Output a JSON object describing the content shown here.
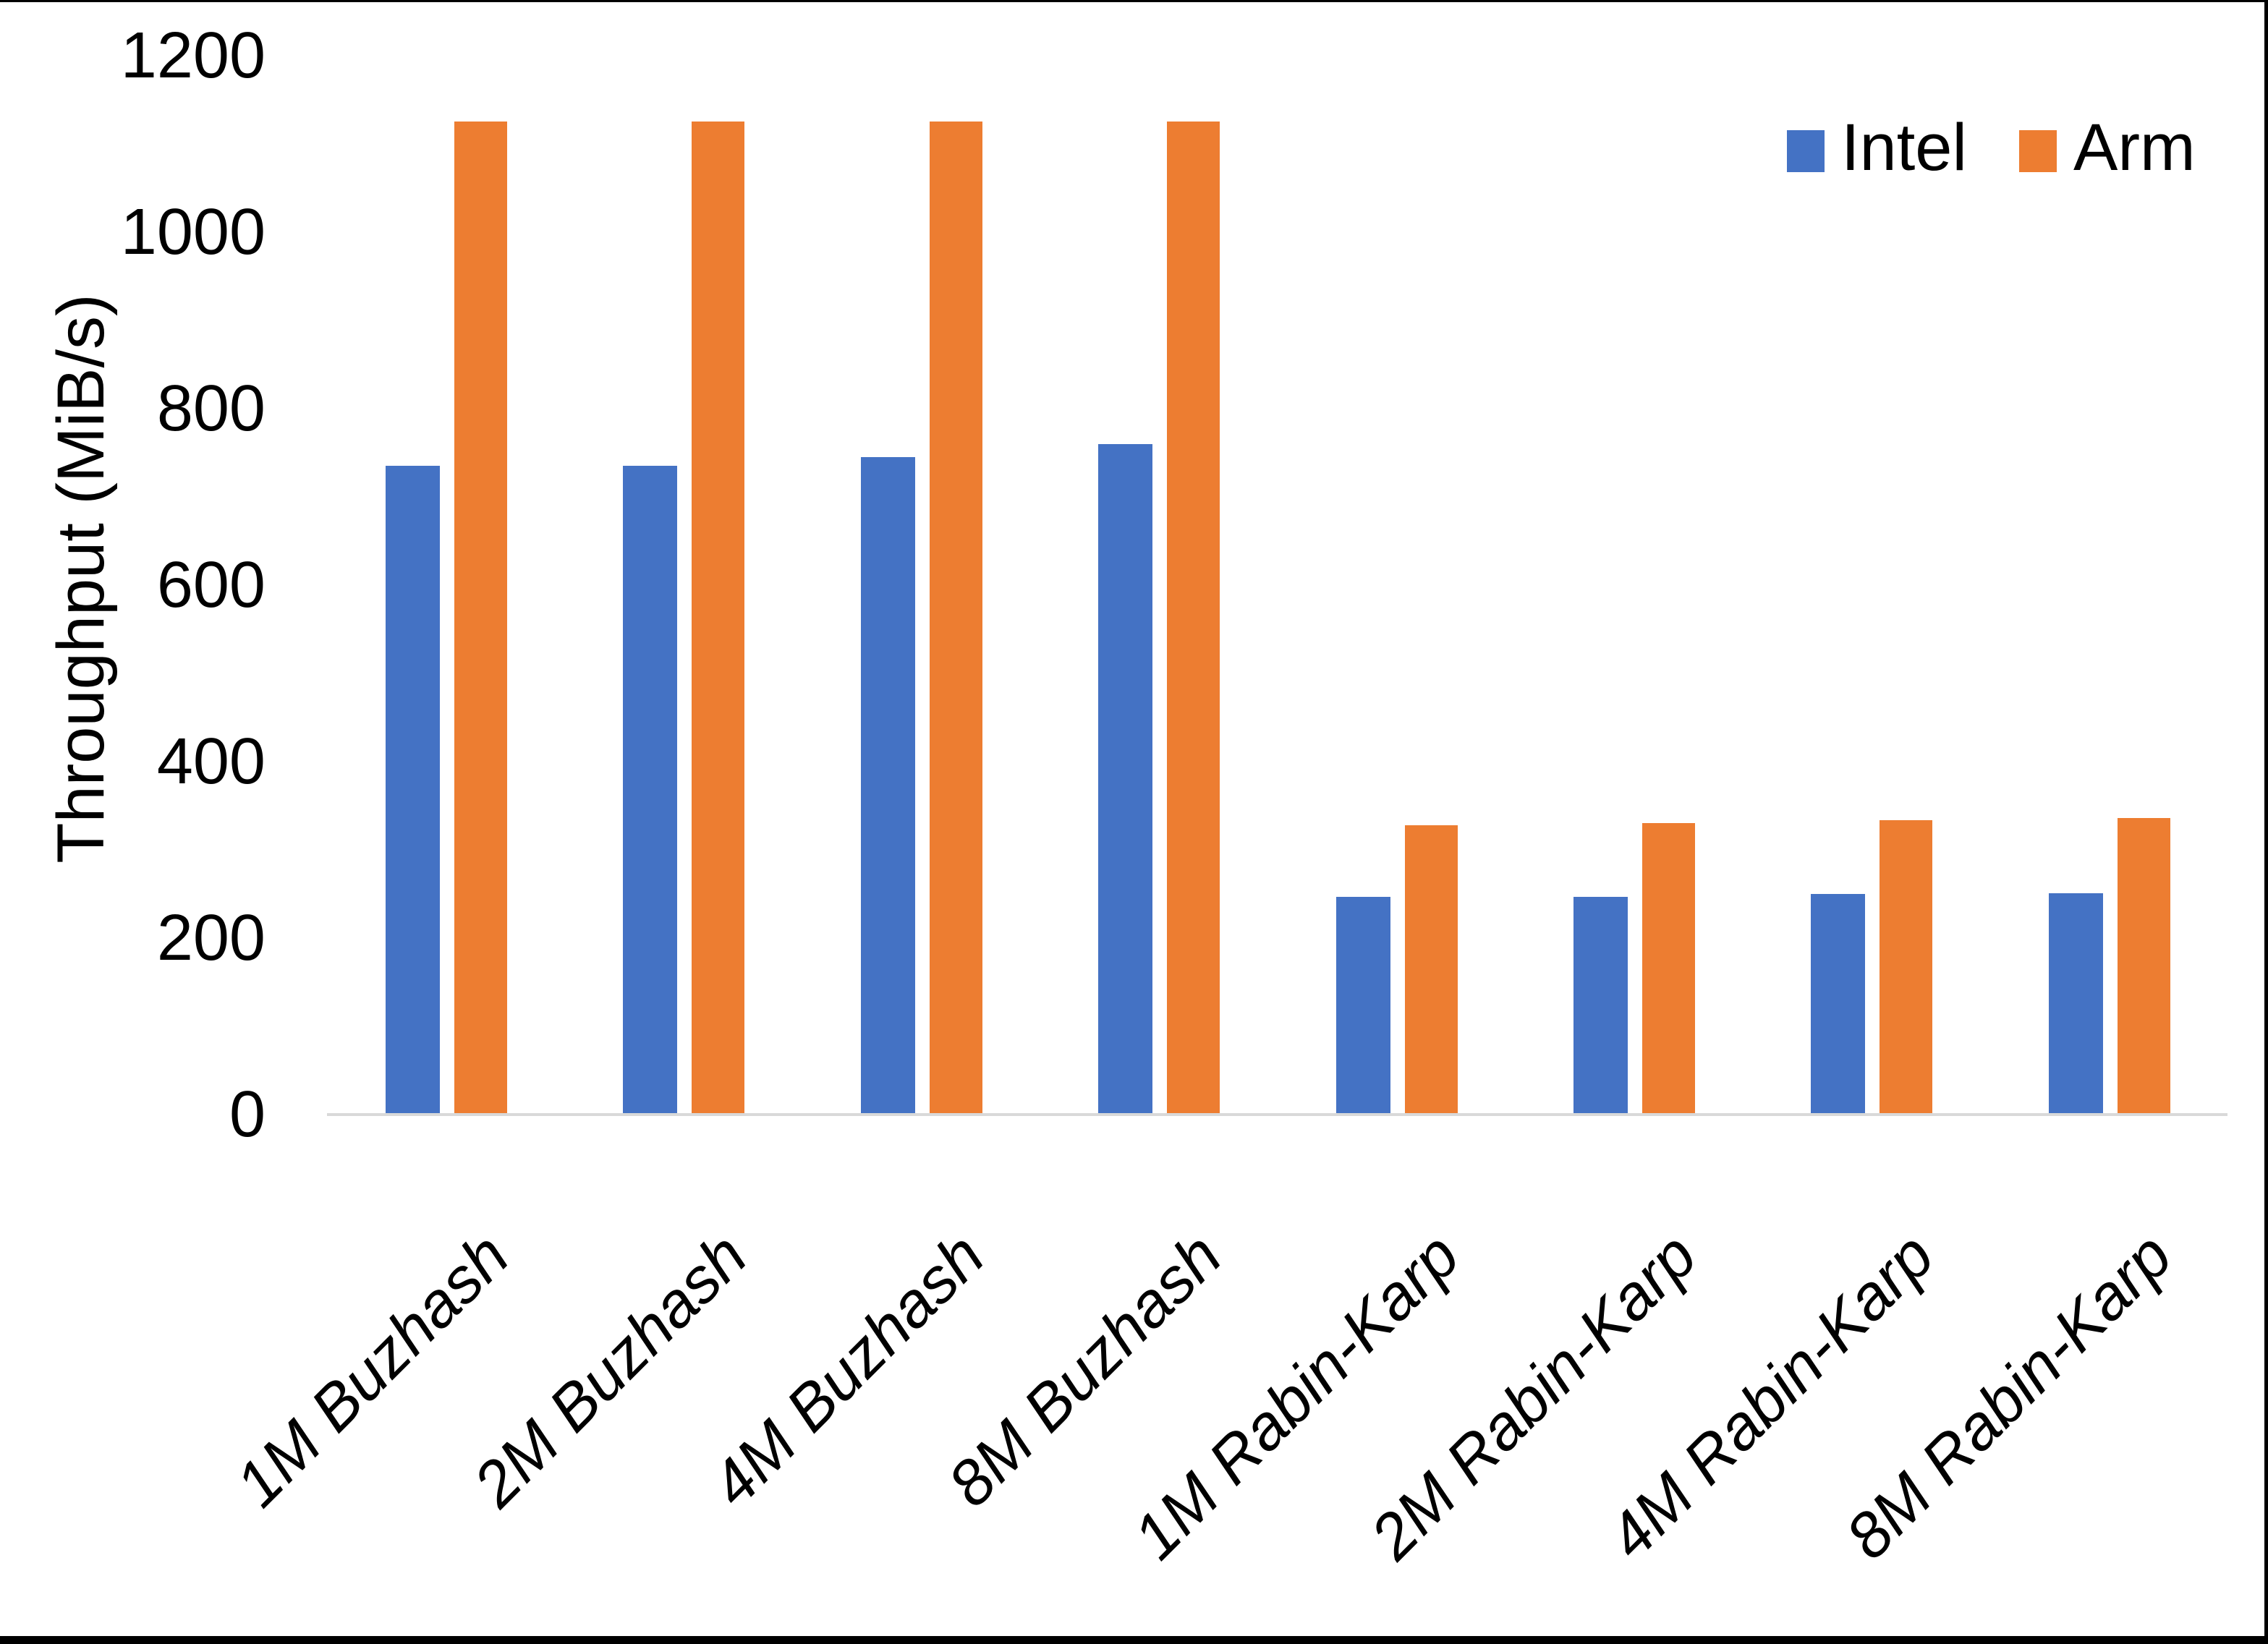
{
  "page": {
    "background": "#FFFFFF",
    "frame_color": "#000000"
  },
  "chart_data": {
    "type": "bar",
    "title": "",
    "xlabel": "",
    "ylabel": "Throughput (MiB/s)",
    "ylim": [
      0,
      1200
    ],
    "yticks": [
      0,
      200,
      400,
      600,
      800,
      1000,
      1200
    ],
    "grid": false,
    "axis_line_color": "#D9D9D9",
    "legend_position": "top-right",
    "categories": [
      "1M Buzhash",
      "2M Buzhash",
      "4M Buzhash",
      "8M Buzhash",
      "1M Rabin-Karp",
      "2M Rabin-Karp",
      "4M Rabin-Karp",
      "8M Rabin-Karp"
    ],
    "series": [
      {
        "name": "Intel",
        "color": "#4472C4",
        "values": [
          735,
          735,
          745,
          760,
          247,
          247,
          250,
          251
        ]
      },
      {
        "name": "Arm",
        "color": "#ED7D31",
        "values": [
          1125,
          1125,
          1125,
          1125,
          328,
          330,
          334,
          336
        ]
      }
    ]
  }
}
